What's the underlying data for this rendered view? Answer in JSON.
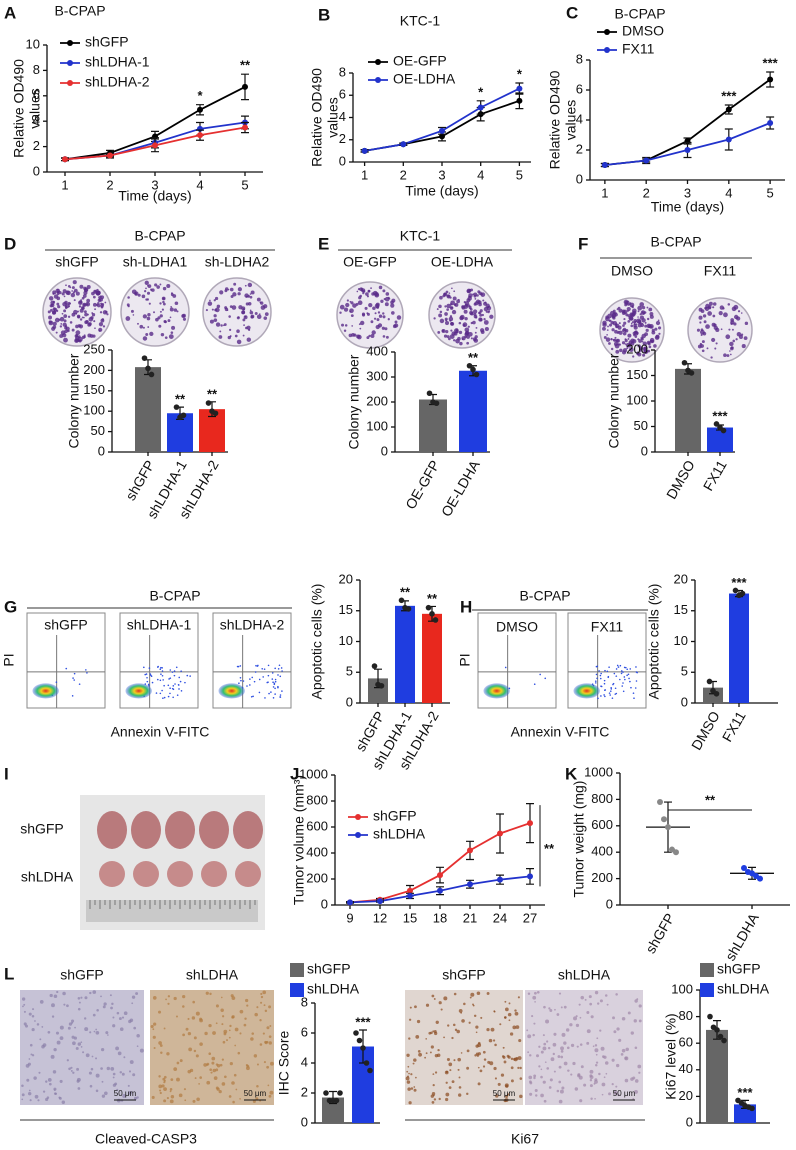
{
  "figure": {
    "letters": [
      "A",
      "B",
      "C",
      "D",
      "E",
      "F",
      "G",
      "H",
      "I",
      "J",
      "K",
      "L"
    ],
    "images": [
      {
        "title": "B-CPAP",
        "labels": [
          "shGFP",
          "sh-LDHA1",
          "sh-LDHA2"
        ]
      },
      {
        "title": "KTC-1",
        "labels": [
          "OE-GFP",
          "OE-LDHA"
        ]
      },
      {
        "title": "B-CPAP",
        "labels": [
          "DMSO",
          "FX11"
        ]
      },
      {
        "title": "B-CPAP",
        "labels": [
          "shGFP",
          "shLDHA-1",
          "shLDHA-2"
        ]
      },
      {
        "title": "B-CPAP",
        "labels": [
          "DMSO",
          "FX11"
        ]
      },
      {
        "labels": [
          "shGFP",
          "shLDHA"
        ]
      },
      {
        "labels": [
          "shGFP",
          "shLDHA"
        ],
        "caption": "Cleaved-CASP3"
      },
      {
        "labels": [
          "shGFP",
          "shLDHA"
        ],
        "caption": "Ki67"
      }
    ],
    "flow_axes": {
      "y": "PI",
      "x": "Annexin V-FITC"
    },
    "scale_bar": "50 μm"
  },
  "chart_data": [
    {
      "type": "line",
      "title": "B-CPAP",
      "x_label": "Time (days)",
      "y_label": [
        "Relative OD490",
        "values"
      ],
      "x": [
        1,
        2,
        3,
        4,
        5
      ],
      "xlim": [
        0.6,
        5.4
      ],
      "xticks": [
        1,
        2,
        3,
        4,
        5
      ],
      "ylim": [
        0,
        10
      ],
      "yticks": [
        0,
        2,
        4,
        6,
        8,
        10
      ],
      "legend": "upper left",
      "series": [
        {
          "name": "shGFP",
          "color": "#000000",
          "values": [
            1,
            1.5,
            2.8,
            4.9,
            6.7
          ],
          "errors": [
            0.1,
            0.2,
            0.4,
            0.4,
            1.0
          ]
        },
        {
          "name": "shLDHA-1",
          "color": "#2233cc",
          "values": [
            1,
            1.3,
            2.3,
            3.4,
            3.9
          ],
          "errors": [
            0.1,
            0.1,
            0.4,
            0.5,
            0.5
          ]
        },
        {
          "name": "shLDHA-2",
          "color": "#e53030",
          "values": [
            1,
            1.3,
            2.1,
            2.9,
            3.5
          ],
          "errors": [
            0.1,
            0.2,
            0.5,
            0.4,
            0.4
          ]
        }
      ],
      "significance": [
        null,
        null,
        null,
        "*",
        "**"
      ]
    },
    {
      "type": "line",
      "title": "KTC-1",
      "x_label": "Time (days)",
      "y_label": [
        "Relative OD490",
        "values"
      ],
      "x": [
        1,
        2,
        3,
        4,
        5
      ],
      "xlim": [
        0.7,
        5.3
      ],
      "xticks": [
        1,
        2,
        3,
        4,
        5
      ],
      "ylim": [
        0,
        8
      ],
      "yticks": [
        0,
        2,
        4,
        6,
        8
      ],
      "legend": "upper left",
      "series": [
        {
          "name": "OE-GFP",
          "color": "#000000",
          "values": [
            1,
            1.6,
            2.3,
            4.3,
            5.5
          ],
          "errors": [
            0.1,
            0.1,
            0.4,
            0.6,
            0.7
          ]
        },
        {
          "name": "OE-LDHA",
          "color": "#2233cc",
          "values": [
            1,
            1.6,
            2.8,
            4.9,
            6.6
          ],
          "errors": [
            0.1,
            0.1,
            0.3,
            0.6,
            0.5
          ]
        }
      ],
      "significance": [
        null,
        null,
        null,
        "*",
        "*"
      ]
    },
    {
      "type": "line",
      "title": "B-CPAP",
      "x_label": "Time (days)",
      "y_label": [
        "Relative OD490",
        "values"
      ],
      "x": [
        1,
        2,
        3,
        4,
        5
      ],
      "xlim": [
        0.64,
        5.36
      ],
      "xticks": [
        1,
        2,
        3,
        4,
        5
      ],
      "ylim": [
        0,
        8
      ],
      "yticks": [
        0,
        2,
        4,
        6,
        8
      ],
      "legend": "upper left",
      "series": [
        {
          "name": "DMSO",
          "color": "#000000",
          "values": [
            1,
            1.3,
            2.6,
            4.7,
            6.7
          ],
          "errors": [
            0.1,
            0.1,
            0.2,
            0.3,
            0.5
          ]
        },
        {
          "name": "FX11",
          "color": "#2233cc",
          "values": [
            1,
            1.3,
            2.0,
            2.7,
            3.8
          ],
          "errors": [
            0.1,
            0.2,
            0.5,
            0.7,
            0.4
          ]
        }
      ],
      "significance": [
        null,
        null,
        null,
        "***",
        "***"
      ]
    },
    {
      "type": "bar",
      "y_label": [
        "Colony number"
      ],
      "categories": [
        "shGFP",
        "shLDHA-1",
        "shLDHA-2"
      ],
      "values": [
        208,
        95,
        105
      ],
      "errors": [
        18,
        15,
        18
      ],
      "points": [
        [
          230,
          205,
          190
        ],
        [
          110,
          85,
          90
        ],
        [
          120,
          100,
          95
        ]
      ],
      "colors": [
        "#666666",
        "#1f3de0",
        "#e8281e"
      ],
      "ylim": [
        0,
        250
      ],
      "yticks": [
        0,
        50,
        100,
        150,
        200,
        250
      ],
      "significance": [
        null,
        "**",
        "**"
      ]
    },
    {
      "type": "bar",
      "y_label": [
        "Colony number"
      ],
      "categories": [
        "OE-GFP",
        "OE-LDHA"
      ],
      "values": [
        210,
        325
      ],
      "errors": [
        20,
        20
      ],
      "points": [
        [
          235,
          200,
          195
        ],
        [
          345,
          330,
          310
        ]
      ],
      "colors": [
        "#666666",
        "#1f3de0"
      ],
      "ylim": [
        0,
        400
      ],
      "yticks": [
        0,
        100,
        200,
        300,
        400
      ],
      "significance": [
        null,
        "**"
      ]
    },
    {
      "type": "bar",
      "y_label": [
        "Colony number"
      ],
      "categories": [
        "DMSO",
        "FX11"
      ],
      "values": [
        163,
        48
      ],
      "errors": [
        10,
        5
      ],
      "points": [
        [
          175,
          160,
          155
        ],
        [
          55,
          48,
          42
        ]
      ],
      "colors": [
        "#666666",
        "#1f3de0"
      ],
      "ylim": [
        0,
        200
      ],
      "yticks": [
        0,
        50,
        100,
        150,
        200
      ],
      "significance": [
        null,
        "***"
      ]
    },
    {
      "type": "bar",
      "y_label": [
        "Apoptotic cells (%)"
      ],
      "categories": [
        "shGFP",
        "shLDHA-1",
        "shLDHA-2"
      ],
      "values": [
        4,
        15.8,
        14.5
      ],
      "errors": [
        1.5,
        0.8,
        1.2
      ],
      "points": [
        [
          6,
          3,
          2.8
        ],
        [
          16.7,
          15.5,
          15.3
        ],
        [
          15.5,
          14.5,
          13.5
        ]
      ],
      "colors": [
        "#666666",
        "#1f3de0",
        "#e8281e"
      ],
      "ylim": [
        0,
        20
      ],
      "yticks": [
        0,
        5,
        10,
        15,
        20
      ],
      "significance": [
        null,
        "**",
        "**"
      ]
    },
    {
      "type": "bar",
      "y_label": [
        "Apoptotic cells (%)"
      ],
      "categories": [
        "DMSO",
        "FX11"
      ],
      "values": [
        2.5,
        17.8
      ],
      "errors": [
        1,
        0.5
      ],
      "points": [
        [
          3.5,
          2,
          1.5
        ],
        [
          18.3,
          17.5,
          17.8
        ]
      ],
      "colors": [
        "#666666",
        "#1f3de0"
      ],
      "ylim": [
        0,
        20
      ],
      "yticks": [
        0,
        5,
        10,
        15,
        20
      ],
      "significance": [
        null,
        "***"
      ]
    },
    {
      "type": "line",
      "y_label": [
        "Tumor volume (mm³)"
      ],
      "x": [
        9,
        12,
        15,
        18,
        21,
        24,
        27
      ],
      "xlim": [
        7.5,
        28.5
      ],
      "xticks": [
        9,
        12,
        15,
        18,
        21,
        24,
        27
      ],
      "ylim": [
        0,
        1000
      ],
      "yticks": [
        0,
        200,
        400,
        600,
        800,
        1000
      ],
      "legend": "upper left",
      "series": [
        {
          "name": "shGFP",
          "color": "#e53030",
          "values": [
            20,
            40,
            110,
            230,
            420,
            550,
            630
          ],
          "errors": [
            5,
            10,
            40,
            60,
            70,
            150,
            150
          ]
        },
        {
          "name": "shLDHA",
          "color": "#2233cc",
          "values": [
            20,
            30,
            70,
            110,
            160,
            195,
            220
          ],
          "errors": [
            5,
            8,
            20,
            30,
            30,
            35,
            60
          ]
        }
      ],
      "significance": "**"
    },
    {
      "type": "dot",
      "y_label": [
        "Tumor weight (mg)"
      ],
      "categories": [
        "shGFP",
        "shLDHA"
      ],
      "values": [
        590,
        240
      ],
      "errors": [
        190,
        45
      ],
      "points": [
        [
          780,
          650,
          590,
          420,
          400
        ],
        [
          280,
          250,
          240,
          220,
          200
        ]
      ],
      "colors": [
        "#888888",
        "#1f3de0"
      ],
      "ylim": [
        0,
        1000
      ],
      "yticks": [
        0,
        200,
        400,
        600,
        800,
        1000
      ],
      "significance": "**"
    },
    {
      "type": "bar",
      "y_label": [
        "IHC Score"
      ],
      "categories": [
        null
      ],
      "legend": "top",
      "ylim": [
        0,
        8
      ],
      "yticks": [
        0,
        2,
        4,
        6,
        8
      ],
      "series": [
        {
          "name": "shGFP",
          "color": "#666666",
          "values": [
            1.7
          ],
          "errors": [
            0.4
          ],
          "points": [
            [
              2,
              1.5,
              1.5,
              1.5,
              2
            ]
          ],
          "significance": [
            null
          ]
        },
        {
          "name": "shLDHA",
          "color": "#1f3de0",
          "values": [
            5.1
          ],
          "errors": [
            1.1
          ],
          "points": [
            [
              6,
              5.5,
              5,
              4,
              3.5
            ]
          ],
          "significance": [
            "***"
          ]
        }
      ]
    },
    {
      "type": "bar",
      "y_label": [
        "Ki67 level (%)"
      ],
      "categories": [
        null
      ],
      "legend": "top",
      "ylim": [
        0,
        100
      ],
      "yticks": [
        0,
        20,
        40,
        60,
        80,
        100
      ],
      "series": [
        {
          "name": "shGFP",
          "color": "#666666",
          "values": [
            70
          ],
          "errors": [
            7
          ],
          "points": [
            [
              80,
              72,
              70,
              65,
              62
            ]
          ],
          "significance": [
            null
          ]
        },
        {
          "name": "shLDHA",
          "color": "#1f3de0",
          "values": [
            14
          ],
          "errors": [
            3
          ],
          "points": [
            [
              17,
              15,
              13,
              12,
              11
            ]
          ],
          "significance": [
            "***"
          ]
        }
      ]
    }
  ]
}
